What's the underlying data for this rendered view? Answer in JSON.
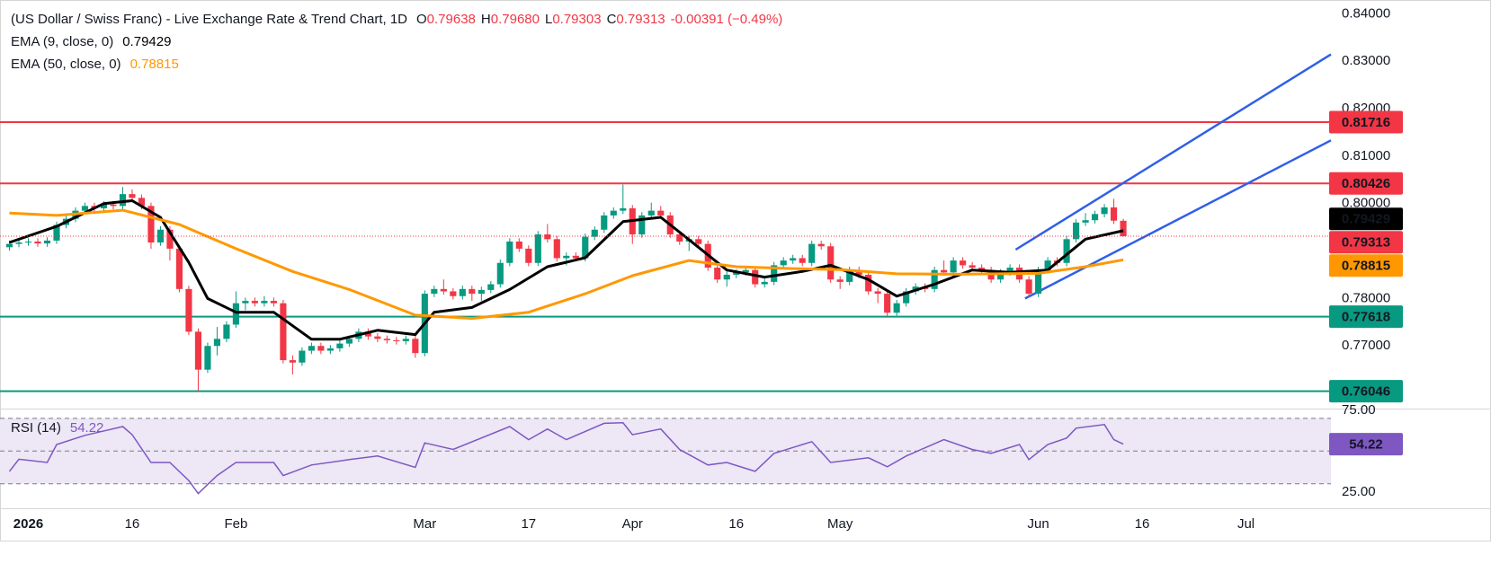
{
  "chart_data": [
    {
      "type": "candlestick",
      "title": "(US Dollar / Swiss Franc) - Live Exchange Rate & Trend Chart, 1D",
      "legend": {
        "ohlc": [
          {
            "label": "O",
            "value": "0.79638"
          },
          {
            "label": "H",
            "value": "0.79680"
          },
          {
            "label": "L",
            "value": "0.79303"
          },
          {
            "label": "C",
            "value": "0.79313"
          }
        ],
        "change": "-0.00391 (−0.49%)"
      },
      "xlim": [
        -1,
        140
      ],
      "xticks": [
        {
          "value": 2,
          "label": "2026"
        },
        {
          "value": 13,
          "label": "16"
        },
        {
          "value": 24,
          "label": "Feb"
        },
        {
          "value": 44,
          "label": "Mar"
        },
        {
          "value": 55,
          "label": "17"
        },
        {
          "value": 66,
          "label": "Apr"
        },
        {
          "value": 77,
          "label": "16"
        },
        {
          "value": 88,
          "label": "May"
        },
        {
          "value": 109,
          "label": "Jun"
        },
        {
          "value": 120,
          "label": "16"
        },
        {
          "value": 131,
          "label": "Jul"
        }
      ],
      "ylim": [
        0.7568,
        0.8429
      ],
      "yticks": [
        {
          "value": 0.84,
          "label": "0.84000"
        },
        {
          "value": 0.83,
          "label": "0.83000"
        },
        {
          "value": 0.82,
          "label": "0.82000"
        },
        {
          "value": 0.81,
          "label": "0.81000"
        },
        {
          "value": 0.8,
          "label": "0.80000"
        },
        {
          "value": 0.78,
          "label": "0.78000"
        },
        {
          "value": 0.77,
          "label": "0.77000"
        }
      ],
      "up_color": "#089981",
      "down_color": "#f23645",
      "ohlc": [
        [
          0.7908,
          0.7922,
          0.7901,
          0.7915
        ],
        [
          0.7915,
          0.7925,
          0.7908,
          0.7918
        ],
        [
          0.7918,
          0.7927,
          0.7911,
          0.792
        ],
        [
          0.792,
          0.7927,
          0.7909,
          0.7916
        ],
        [
          0.7916,
          0.7929,
          0.7909,
          0.7922
        ],
        [
          0.7922,
          0.7962,
          0.7915,
          0.7955
        ],
        [
          0.7955,
          0.7975,
          0.7948,
          0.7968
        ],
        [
          0.7968,
          0.7992,
          0.7961,
          0.7985
        ],
        [
          0.7985,
          0.8002,
          0.7978,
          0.7995
        ],
        [
          0.7995,
          0.8002,
          0.7983,
          0.799
        ],
        [
          0.799,
          0.8005,
          0.7983,
          0.7998
        ],
        [
          0.7998,
          0.8005,
          0.7988,
          0.7995
        ],
        [
          0.7995,
          0.8035,
          0.7988,
          0.802
        ],
        [
          0.802,
          0.803,
          0.8005,
          0.8012
        ],
        [
          0.8012,
          0.8019,
          0.7988,
          0.7995
        ],
        [
          0.7995,
          0.8002,
          0.7905,
          0.7918
        ],
        [
          0.7918,
          0.7952,
          0.7911,
          0.7945
        ],
        [
          0.7945,
          0.7952,
          0.788,
          0.7905
        ],
        [
          0.7905,
          0.7912,
          0.7813,
          0.782
        ],
        [
          0.782,
          0.7827,
          0.7723,
          0.773
        ],
        [
          0.773,
          0.7737,
          0.7605,
          0.765
        ],
        [
          0.765,
          0.7707,
          0.7643,
          0.77
        ],
        [
          0.77,
          0.774,
          0.768,
          0.7715
        ],
        [
          0.7715,
          0.7752,
          0.7708,
          0.7745
        ],
        [
          0.7745,
          0.7815,
          0.7738,
          0.779
        ],
        [
          0.779,
          0.7802,
          0.7775,
          0.7795
        ],
        [
          0.7795,
          0.7802,
          0.7783,
          0.779
        ],
        [
          0.779,
          0.7805,
          0.7783,
          0.7795
        ],
        [
          0.7795,
          0.7802,
          0.7783,
          0.779
        ],
        [
          0.779,
          0.7797,
          0.7663,
          0.767
        ],
        [
          0.767,
          0.768,
          0.764,
          0.7665
        ],
        [
          0.7665,
          0.7697,
          0.7658,
          0.769
        ],
        [
          0.769,
          0.7707,
          0.7683,
          0.77
        ],
        [
          0.77,
          0.7707,
          0.7683,
          0.769
        ],
        [
          0.769,
          0.7702,
          0.7683,
          0.7695
        ],
        [
          0.7695,
          0.7712,
          0.7688,
          0.7705
        ],
        [
          0.7705,
          0.7722,
          0.7698,
          0.7715
        ],
        [
          0.7715,
          0.7737,
          0.7708,
          0.773
        ],
        [
          0.773,
          0.7737,
          0.7713,
          0.772
        ],
        [
          0.772,
          0.7727,
          0.7708,
          0.7715
        ],
        [
          0.7715,
          0.7722,
          0.7705,
          0.7712
        ],
        [
          0.7712,
          0.7719,
          0.7703,
          0.771
        ],
        [
          0.771,
          0.7722,
          0.7703,
          0.7715
        ],
        [
          0.7715,
          0.7722,
          0.7675,
          0.7685
        ],
        [
          0.7685,
          0.7817,
          0.7678,
          0.781
        ],
        [
          0.781,
          0.7827,
          0.7803,
          0.782
        ],
        [
          0.782,
          0.784,
          0.7808,
          0.7815
        ],
        [
          0.7815,
          0.7822,
          0.7798,
          0.7805
        ],
        [
          0.7805,
          0.7827,
          0.7798,
          0.782
        ],
        [
          0.782,
          0.7827,
          0.7795,
          0.781
        ],
        [
          0.781,
          0.7825,
          0.7795,
          0.7818
        ],
        [
          0.7818,
          0.7837,
          0.7811,
          0.783
        ],
        [
          0.783,
          0.7882,
          0.7823,
          0.7875
        ],
        [
          0.7875,
          0.7927,
          0.7868,
          0.792
        ],
        [
          0.792,
          0.7927,
          0.7898,
          0.7905
        ],
        [
          0.7905,
          0.7912,
          0.7868,
          0.7875
        ],
        [
          0.7875,
          0.7942,
          0.7868,
          0.7935
        ],
        [
          0.7935,
          0.7957,
          0.7918,
          0.7925
        ],
        [
          0.7925,
          0.7932,
          0.7878,
          0.7885
        ],
        [
          0.7885,
          0.7897,
          0.787,
          0.789
        ],
        [
          0.789,
          0.7897,
          0.7878,
          0.7885
        ],
        [
          0.7885,
          0.7937,
          0.7878,
          0.793
        ],
        [
          0.793,
          0.7952,
          0.7923,
          0.7945
        ],
        [
          0.7945,
          0.7982,
          0.7938,
          0.7975
        ],
        [
          0.7975,
          0.7992,
          0.7968,
          0.7985
        ],
        [
          0.7985,
          0.804,
          0.7978,
          0.799
        ],
        [
          0.799,
          0.7997,
          0.7915,
          0.7935
        ],
        [
          0.7935,
          0.7982,
          0.7928,
          0.7975
        ],
        [
          0.7975,
          0.8002,
          0.7968,
          0.7985
        ],
        [
          0.7985,
          0.7995,
          0.7968,
          0.7975
        ],
        [
          0.7975,
          0.7982,
          0.7928,
          0.7935
        ],
        [
          0.7935,
          0.7942,
          0.7913,
          0.792
        ],
        [
          0.792,
          0.7932,
          0.79,
          0.7925
        ],
        [
          0.7925,
          0.7932,
          0.7908,
          0.7915
        ],
        [
          0.7915,
          0.7922,
          0.7858,
          0.7865
        ],
        [
          0.7865,
          0.7872,
          0.7833,
          0.784
        ],
        [
          0.784,
          0.7857,
          0.7825,
          0.785
        ],
        [
          0.785,
          0.7862,
          0.7843,
          0.7855
        ],
        [
          0.7855,
          0.7867,
          0.7848,
          0.786
        ],
        [
          0.786,
          0.7867,
          0.7823,
          0.783
        ],
        [
          0.783,
          0.7842,
          0.7823,
          0.7835
        ],
        [
          0.7835,
          0.7877,
          0.7828,
          0.787
        ],
        [
          0.787,
          0.7887,
          0.7863,
          0.788
        ],
        [
          0.788,
          0.7892,
          0.7873,
          0.7885
        ],
        [
          0.7885,
          0.7892,
          0.7868,
          0.7875
        ],
        [
          0.7875,
          0.7922,
          0.7868,
          0.7915
        ],
        [
          0.7915,
          0.7922,
          0.7903,
          0.791
        ],
        [
          0.791,
          0.7917,
          0.7833,
          0.784
        ],
        [
          0.784,
          0.7847,
          0.782,
          0.7835
        ],
        [
          0.7835,
          0.7867,
          0.7828,
          0.786
        ],
        [
          0.786,
          0.7867,
          0.7843,
          0.785
        ],
        [
          0.785,
          0.7857,
          0.7808,
          0.7815
        ],
        [
          0.7815,
          0.7822,
          0.779,
          0.781
        ],
        [
          0.781,
          0.7817,
          0.776,
          0.777
        ],
        [
          0.777,
          0.7797,
          0.7763,
          0.779
        ],
        [
          0.779,
          0.7822,
          0.7783,
          0.7815
        ],
        [
          0.7815,
          0.7832,
          0.7808,
          0.7825
        ],
        [
          0.7825,
          0.7832,
          0.7813,
          0.782
        ],
        [
          0.782,
          0.7867,
          0.7813,
          0.786
        ],
        [
          0.786,
          0.788,
          0.7848,
          0.7855
        ],
        [
          0.7855,
          0.7887,
          0.7848,
          0.788
        ],
        [
          0.788,
          0.7887,
          0.7863,
          0.787
        ],
        [
          0.787,
          0.7877,
          0.7858,
          0.7865
        ],
        [
          0.7865,
          0.7872,
          0.7853,
          0.786
        ],
        [
          0.786,
          0.7867,
          0.7833,
          0.784
        ],
        [
          0.784,
          0.7862,
          0.7833,
          0.7855
        ],
        [
          0.7855,
          0.7872,
          0.7848,
          0.7865
        ],
        [
          0.7865,
          0.7872,
          0.7833,
          0.784
        ],
        [
          0.784,
          0.7847,
          0.7803,
          0.781
        ],
        [
          0.781,
          0.7867,
          0.7803,
          0.786
        ],
        [
          0.786,
          0.7887,
          0.7853,
          0.788
        ],
        [
          0.788,
          0.7887,
          0.7868,
          0.7875
        ],
        [
          0.7875,
          0.7932,
          0.7868,
          0.7925
        ],
        [
          0.7925,
          0.7967,
          0.7918,
          0.796
        ],
        [
          0.796,
          0.798,
          0.7953,
          0.7965
        ],
        [
          0.7965,
          0.7985,
          0.7958,
          0.7978
        ],
        [
          0.7978,
          0.7999,
          0.7971,
          0.7992
        ],
        [
          0.7992,
          0.801,
          0.7957,
          0.7964
        ],
        [
          0.79638,
          0.7968,
          0.79303,
          0.79313
        ]
      ],
      "series": [
        {
          "name": "EMA (9, close, 0)",
          "color": "#000000",
          "x": [
            0,
            5,
            10,
            13,
            16,
            19,
            21,
            24,
            28,
            32,
            35,
            39,
            43,
            45,
            49,
            53,
            57,
            61,
            65,
            69,
            72,
            76,
            80,
            84,
            87,
            91,
            94,
            98,
            102,
            106,
            110,
            114,
            118
          ],
          "values": [
            0.7918,
            0.7952,
            0.8,
            0.8006,
            0.7971,
            0.7876,
            0.78,
            0.7771,
            0.7771,
            0.7714,
            0.7714,
            0.7733,
            0.7724,
            0.7771,
            0.7781,
            0.7819,
            0.7867,
            0.7886,
            0.7962,
            0.7971,
            0.7924,
            0.786,
            0.7845,
            0.7857,
            0.787,
            0.784,
            0.7805,
            0.783,
            0.786,
            0.7855,
            0.786,
            0.7925,
            0.79429
          ]
        },
        {
          "name": "EMA (50, close, 0)",
          "color": "#ff9800",
          "x": [
            0,
            5,
            12,
            18,
            24,
            30,
            36,
            43,
            49,
            55,
            61,
            66,
            72,
            77,
            83,
            88,
            94,
            100,
            109,
            114,
            118
          ],
          "values": [
            0.798,
            0.7975,
            0.7986,
            0.7956,
            0.7905,
            0.7857,
            0.7819,
            0.7765,
            0.7758,
            0.7771,
            0.781,
            0.7848,
            0.788,
            0.7867,
            0.7863,
            0.7861,
            0.7852,
            0.7851,
            0.7853,
            0.7867,
            0.78815
          ]
        }
      ],
      "hlines": [
        {
          "value": 0.81716,
          "color": "#f23645"
        },
        {
          "value": 0.80426,
          "color": "#f23645"
        },
        {
          "value": 0.77618,
          "color": "#089981"
        },
        {
          "value": 0.76046,
          "color": "#089981"
        }
      ],
      "trendlines": [
        {
          "x": [
            106.6,
            140
          ],
          "values": [
            0.79029,
            0.83143
          ],
          "color": "#2f5fe8"
        },
        {
          "x": [
            107.6,
            140
          ],
          "values": [
            0.78,
            0.81333
          ],
          "color": "#2f5fe8"
        }
      ]
    },
    {
      "type": "line",
      "xlim": [
        -1,
        140
      ],
      "ylim": [
        15,
        76
      ],
      "yticks": [
        {
          "value": 75,
          "label": "75.00"
        },
        {
          "value": 25,
          "label": "25.00"
        }
      ],
      "levels": [
        70,
        50,
        30
      ],
      "band_color": "#ede7f6",
      "series": [
        {
          "name": "RSI (14)",
          "color": "#7e57c2",
          "x": [
            0,
            1,
            4,
            5,
            8,
            12,
            13,
            15,
            17,
            19,
            20,
            22,
            24,
            28,
            29,
            32,
            36,
            39,
            43,
            44,
            47,
            53,
            55,
            57,
            59,
            63,
            65,
            66,
            69,
            71,
            74,
            76,
            79,
            81,
            85,
            87,
            91,
            93,
            95,
            99,
            102,
            104,
            107,
            108,
            110,
            112,
            113,
            116,
            117,
            118
          ],
          "values": [
            37.6,
            45,
            43,
            54,
            59.6,
            65,
            60,
            43,
            43,
            32,
            24,
            35,
            43,
            43,
            35,
            41.5,
            44.8,
            47,
            40,
            55,
            51,
            65,
            57,
            63.5,
            57,
            67,
            67.3,
            60,
            63.5,
            51,
            41.5,
            43,
            37.6,
            48.6,
            55.8,
            43,
            45.9,
            40.4,
            47,
            57,
            51,
            48.6,
            54,
            44.8,
            54,
            58,
            64,
            66.2,
            57,
            54.22
          ]
        }
      ]
    }
  ]
}
